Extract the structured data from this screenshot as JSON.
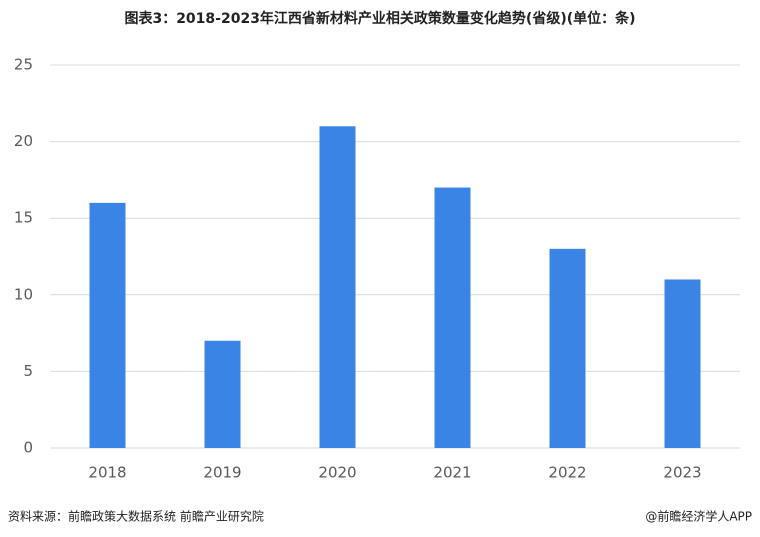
{
  "chart_data": {
    "type": "bar",
    "title": "图表3：2018-2023年江西省新材料产业相关政策数量变化趋势(省级)(单位：条)",
    "categories": [
      "2018",
      "2019",
      "2020",
      "2021",
      "2022",
      "2023"
    ],
    "values": [
      16,
      7,
      21,
      17,
      13,
      11
    ],
    "color": "#3a84e6",
    "ylim": [
      0,
      25
    ],
    "yticks": [
      0,
      5,
      10,
      15,
      20,
      25
    ],
    "grid": true,
    "source": "资料来源：前瞻政策大数据系统 前瞻产业研究院",
    "credit": "@前瞻经济学人APP"
  }
}
